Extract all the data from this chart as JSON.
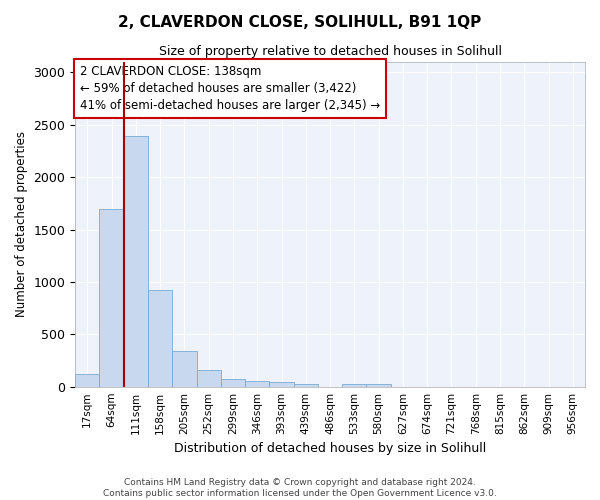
{
  "title": "2, CLAVERDON CLOSE, SOLIHULL, B91 1QP",
  "subtitle": "Size of property relative to detached houses in Solihull",
  "xlabel": "Distribution of detached houses by size in Solihull",
  "ylabel": "Number of detached properties",
  "bar_color": "#c8d8ee",
  "bar_edge_color": "#7aaad4",
  "background_color": "#eef2fa",
  "grid_color": "#ffffff",
  "categories": [
    "17sqm",
    "64sqm",
    "111sqm",
    "158sqm",
    "205sqm",
    "252sqm",
    "299sqm",
    "346sqm",
    "393sqm",
    "439sqm",
    "486sqm",
    "533sqm",
    "580sqm",
    "627sqm",
    "674sqm",
    "721sqm",
    "768sqm",
    "815sqm",
    "862sqm",
    "909sqm",
    "956sqm"
  ],
  "values": [
    120,
    1700,
    2390,
    920,
    345,
    155,
    75,
    55,
    45,
    30,
    0,
    30,
    30,
    0,
    0,
    0,
    0,
    0,
    0,
    0,
    0
  ],
  "ylim": [
    0,
    3100
  ],
  "yticks": [
    0,
    500,
    1000,
    1500,
    2000,
    2500,
    3000
  ],
  "property_bin_index": 2,
  "annotation_text": "2 CLAVERDON CLOSE: 138sqm\n← 59% of detached houses are smaller (3,422)\n41% of semi-detached houses are larger (2,345) →",
  "annotation_box_color": "#ffffff",
  "annotation_border_color": "#cc0000",
  "vline_color": "#aa0000",
  "footer_line1": "Contains HM Land Registry data © Crown copyright and database right 2024.",
  "footer_line2": "Contains public sector information licensed under the Open Government Licence v3.0."
}
